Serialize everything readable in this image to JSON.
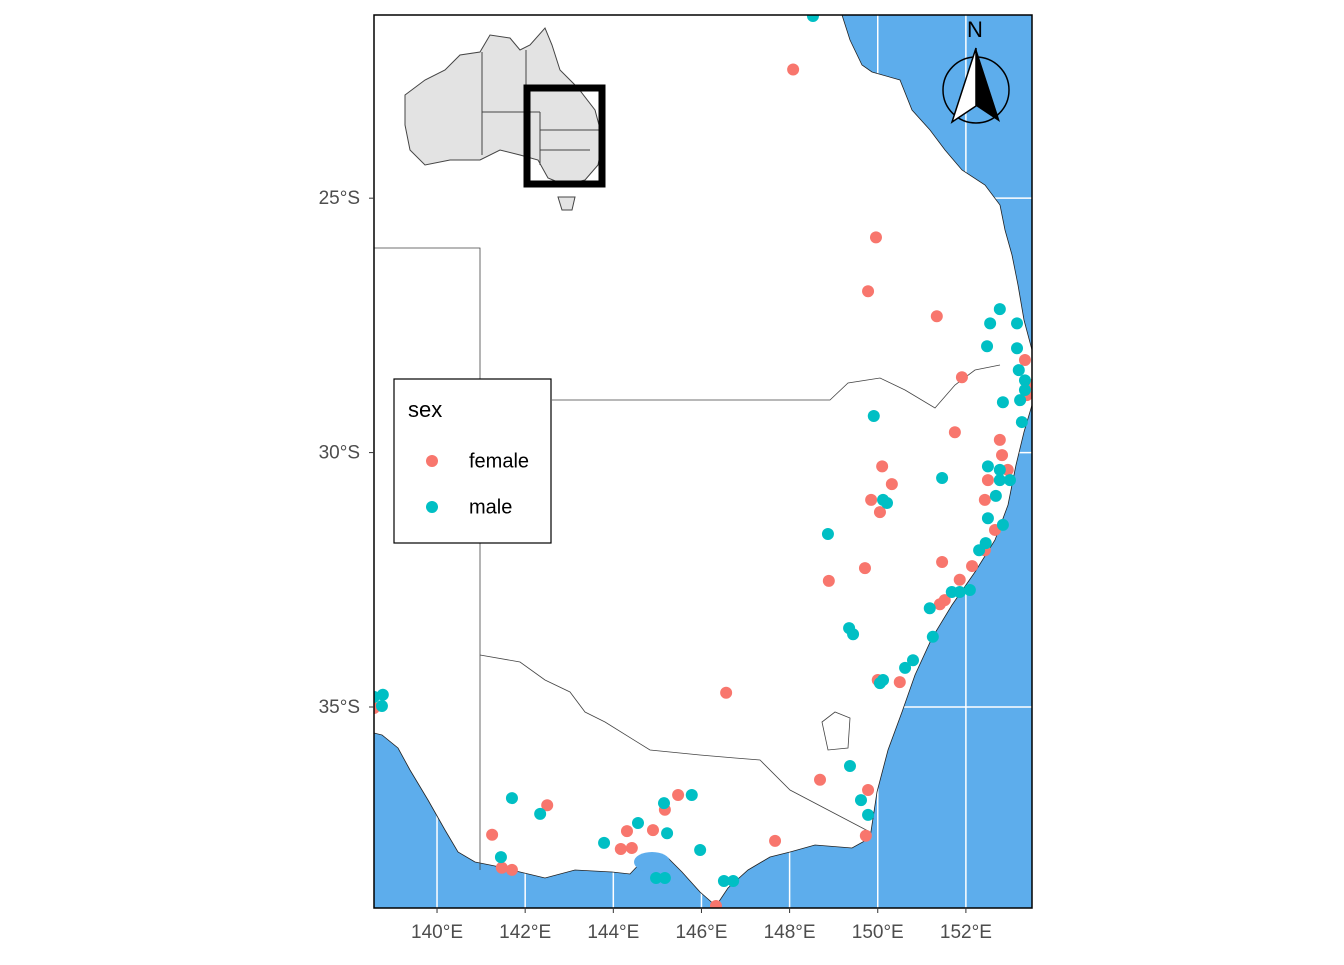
{
  "chart_data": {
    "type": "scatter",
    "xlim": [
      138.57,
      153.5
    ],
    "ylim": [
      -38.95,
      -21.4
    ],
    "xticks": [
      {
        "value": 140,
        "label": "140°E"
      },
      {
        "value": 142,
        "label": "142°E"
      },
      {
        "value": 144,
        "label": "144°E"
      },
      {
        "value": 146,
        "label": "146°E"
      },
      {
        "value": 148,
        "label": "148°E"
      },
      {
        "value": 150,
        "label": "150°E"
      },
      {
        "value": 152,
        "label": "152°E"
      }
    ],
    "yticks": [
      {
        "value": -25,
        "label": "25°S"
      },
      {
        "value": -30,
        "label": "30°S"
      },
      {
        "value": -35,
        "label": "35°S"
      }
    ],
    "grid": true,
    "legend": "left",
    "legend_title": "sex",
    "north_label": "N",
    "series": [
      {
        "name": "female",
        "color": "#F8766D",
        "x": [
          148.08,
          149.96,
          149.78,
          151.34,
          151.91,
          151.75,
          153.34,
          153.38,
          152.77,
          152.82,
          150.1,
          150.32,
          149.85,
          150.05,
          152.5,
          152.95,
          152.43,
          151.46,
          149.71,
          148.89,
          152.14,
          151.86,
          151.52,
          151.41,
          150.0,
          150.5,
          146.56,
          148.69,
          149.78,
          149.73,
          141.25,
          141.47,
          141.7,
          142.5,
          145.47,
          145.17,
          144.9,
          144.31,
          144.17,
          144.42,
          147.67,
          146.33,
          138.57,
          153.45,
          152.43,
          152.66
        ],
        "y": [
          -22.47,
          -25.77,
          -26.83,
          -27.32,
          -28.52,
          -29.6,
          -28.18,
          -28.87,
          -29.75,
          -30.05,
          -30.27,
          -30.62,
          -30.93,
          -31.17,
          -30.54,
          -30.34,
          -30.93,
          -32.15,
          -32.27,
          -32.52,
          -32.23,
          -32.5,
          -32.9,
          -32.98,
          -34.47,
          -34.51,
          -34.72,
          -36.43,
          -36.63,
          -37.53,
          -37.51,
          -38.16,
          -38.2,
          -36.93,
          -36.73,
          -37.02,
          -37.42,
          -37.44,
          -37.79,
          -37.77,
          -37.63,
          -38.91,
          -35.02,
          -28.67,
          -31.92,
          -31.52
        ]
      },
      {
        "name": "male",
        "color": "#00BFC4",
        "x": [
          148.53,
          152.77,
          152.55,
          152.48,
          153.16,
          153.16,
          153.2,
          153.34,
          153.34,
          152.84,
          153.23,
          153.27,
          149.91,
          152.5,
          152.77,
          152.77,
          153.0,
          152.68,
          152.5,
          152.84,
          151.46,
          150.12,
          150.21,
          148.87,
          152.3,
          152.45,
          151.68,
          151.86,
          152.09,
          151.18,
          149.35,
          149.44,
          151.25,
          150.8,
          150.62,
          150.12,
          150.05,
          149.37,
          149.62,
          149.78,
          138.57,
          138.77,
          138.75,
          141.7,
          142.34,
          145.15,
          145.78,
          145.22,
          144.56,
          143.79,
          145.97,
          141.45,
          144.97,
          145.17,
          146.51,
          146.72
        ],
        "y": [
          -21.42,
          -27.18,
          -27.46,
          -27.91,
          -27.46,
          -27.95,
          -28.38,
          -28.58,
          -28.77,
          -29.01,
          -28.97,
          -29.4,
          -29.28,
          -30.27,
          -30.34,
          -30.54,
          -30.54,
          -30.85,
          -31.29,
          -31.42,
          -30.5,
          -30.93,
          -30.99,
          -31.6,
          -31.92,
          -31.78,
          -32.74,
          -32.74,
          -32.7,
          -33.06,
          -33.45,
          -33.57,
          -33.62,
          -34.08,
          -34.23,
          -34.47,
          -34.53,
          -36.16,
          -36.83,
          -37.12,
          -34.8,
          -34.76,
          -34.98,
          -36.79,
          -37.1,
          -36.89,
          -36.73,
          -37.48,
          -37.28,
          -37.67,
          -37.81,
          -37.95,
          -38.36,
          -38.36,
          -38.42,
          -38.42
        ]
      }
    ]
  }
}
